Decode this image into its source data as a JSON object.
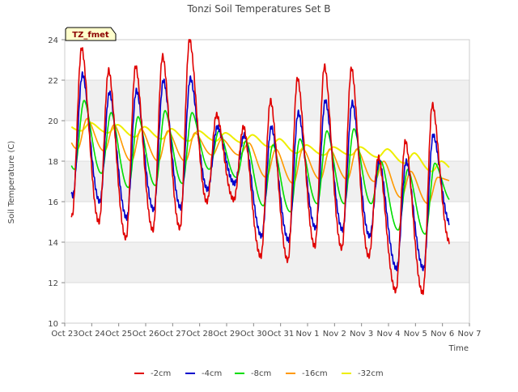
{
  "chart_data": {
    "type": "line",
    "title": "Tonzi Soil Temperatures Set B",
    "xlabel": "Time",
    "ylabel": "Soil Temperature (C)",
    "site_tag": "TZ_fmet",
    "ylim": [
      10,
      24
    ],
    "yticks": [
      "10",
      "12",
      "14",
      "16",
      "18",
      "20",
      "22",
      "24"
    ],
    "xlim_days": [
      0,
      15
    ],
    "xtick_labels": [
      "Oct 23",
      "Oct 24",
      "Oct 25",
      "Oct 26",
      "Oct 27",
      "Oct 28",
      "Oct 29",
      "Oct 30",
      "Oct 31",
      "Nov 1",
      "Nov 2",
      "Nov 3",
      "Nov 4",
      "Nov 5",
      "Nov 6",
      "Nov 7"
    ],
    "grid": "horizontal bands",
    "legend_position": "bottom",
    "colors": {
      "-2cm": "#e00000",
      "-4cm": "#0000cc",
      "-8cm": "#00dd00",
      "-16cm": "#ff9900",
      "-32cm": "#eeee00"
    },
    "day_offsets": [
      0.25,
      1.25,
      2.25,
      3.25,
      4.25,
      5.25,
      6.25,
      7.25,
      8.25,
      9.25,
      10.25,
      11.25,
      12.25,
      13.25,
      14.25
    ],
    "series": [
      {
        "name": "-2cm",
        "daily_min": [
          15.3,
          15.0,
          14.2,
          14.6,
          14.7,
          16.0,
          16.1,
          13.3,
          13.1,
          13.8,
          13.7,
          13.3,
          11.6,
          11.5,
          14.0
        ],
        "daily_max": [
          23.6,
          22.5,
          22.7,
          23.2,
          24.0,
          20.3,
          19.7,
          21.0,
          22.1,
          22.7,
          22.6,
          18.2,
          19.0,
          20.8,
          14.0
        ]
      },
      {
        "name": "-4cm",
        "daily_min": [
          16.3,
          16.0,
          15.2,
          15.6,
          15.7,
          16.6,
          16.9,
          14.3,
          14.1,
          14.7,
          14.6,
          14.3,
          12.7,
          12.7,
          14.9
        ],
        "daily_max": [
          22.3,
          21.4,
          21.5,
          22.0,
          22.1,
          19.7,
          19.3,
          19.7,
          20.4,
          21.0,
          20.9,
          18.0,
          18.0,
          19.3,
          14.9
        ]
      },
      {
        "name": "-8cm",
        "daily_min": [
          17.6,
          17.4,
          16.7,
          16.8,
          16.9,
          17.6,
          17.2,
          15.8,
          15.5,
          15.9,
          15.9,
          15.9,
          14.6,
          14.4,
          16.0
        ],
        "daily_max": [
          21.0,
          20.4,
          20.2,
          20.5,
          20.4,
          19.5,
          19.0,
          18.8,
          19.1,
          19.5,
          19.6,
          18.0,
          17.6,
          17.9,
          16.0
        ]
      },
      {
        "name": "-16cm",
        "daily_min": [
          18.6,
          18.5,
          18.0,
          18.0,
          18.0,
          18.3,
          18.3,
          17.2,
          16.9,
          17.1,
          17.1,
          17.0,
          16.2,
          15.9,
          17.0
        ],
        "daily_max": [
          20.1,
          19.8,
          19.6,
          19.5,
          19.4,
          19.1,
          18.9,
          18.6,
          18.6,
          18.6,
          18.6,
          18.0,
          17.5,
          17.2,
          17.0
        ]
      },
      {
        "name": "-32cm",
        "daily_min": [
          19.5,
          19.4,
          19.2,
          19.1,
          19.0,
          19.0,
          18.9,
          18.7,
          18.4,
          18.3,
          18.3,
          18.2,
          17.9,
          17.5,
          17.4
        ],
        "daily_max": [
          19.9,
          19.8,
          19.7,
          19.6,
          19.5,
          19.4,
          19.3,
          19.1,
          18.8,
          18.7,
          18.7,
          18.6,
          18.4,
          18.0,
          17.6
        ]
      }
    ]
  }
}
